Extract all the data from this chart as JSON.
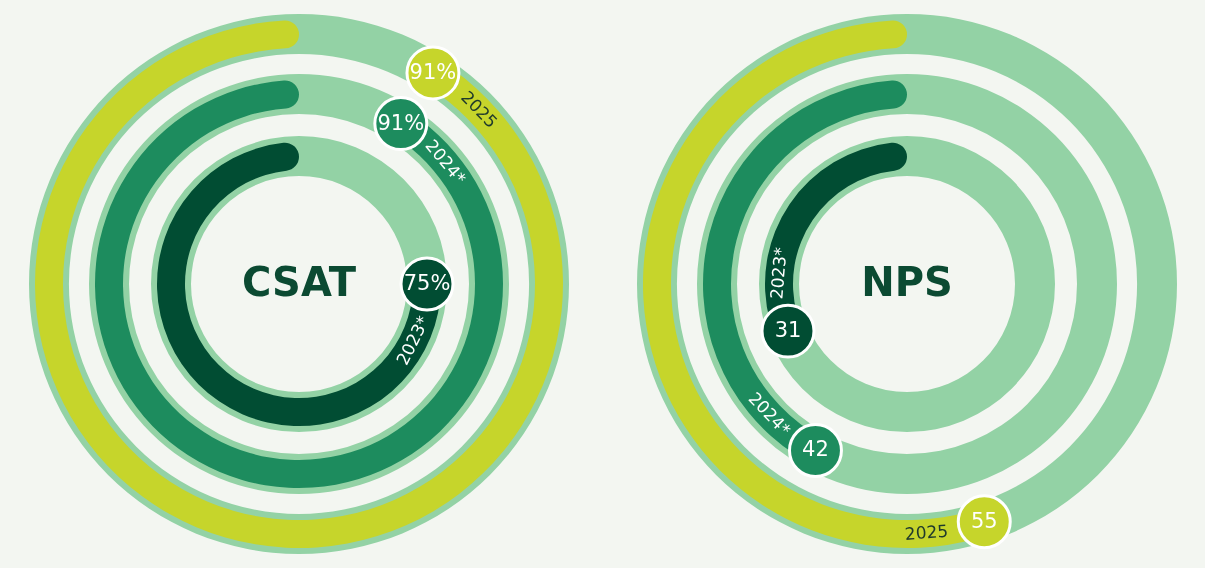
{
  "chart_data": [
    {
      "type": "other",
      "title": "CSAT",
      "categories": [
        "2023*",
        "2024*",
        "2025"
      ],
      "values": [
        75,
        91,
        91
      ],
      "value_labels": [
        "75%",
        "91%",
        "91%"
      ],
      "colors": [
        "#014d33",
        "#1d8c5e",
        "#c6d52b"
      ]
    },
    {
      "type": "other",
      "title": "NPS",
      "categories": [
        "2023*",
        "2024*",
        "2025"
      ],
      "values": [
        31,
        42,
        55
      ],
      "value_labels": [
        "31",
        "42",
        "55"
      ],
      "colors": [
        "#014d33",
        "#1d8c5e",
        "#c6d52b"
      ]
    }
  ]
}
